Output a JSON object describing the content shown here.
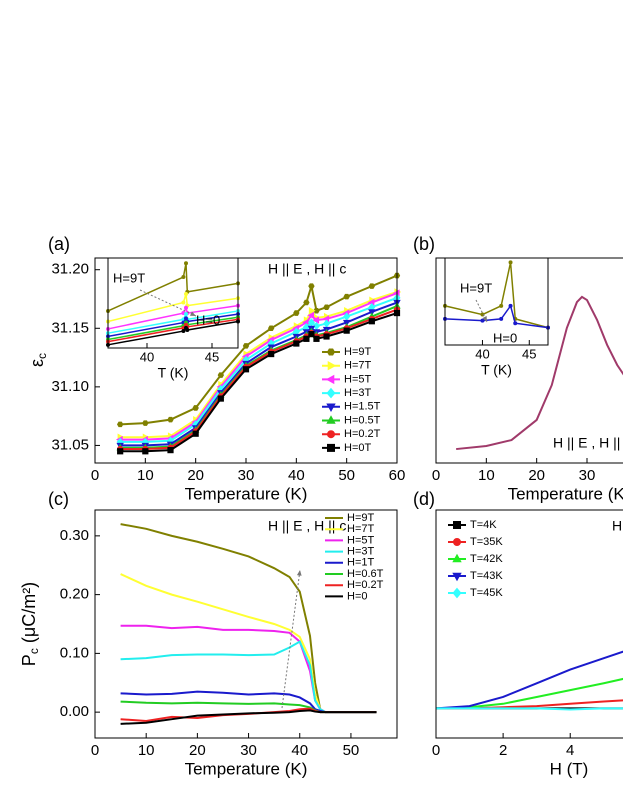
{
  "chart_data": [
    {
      "type": "line",
      "panel": "(a)",
      "xlabel": "Temperature (K)",
      "ylabel": {
        "main": "ε",
        "sub": "c"
      },
      "xlim": [
        0,
        60
      ],
      "ylim": [
        31.035,
        31.21
      ],
      "xticks": [
        0,
        10,
        20,
        30,
        40,
        50,
        60
      ],
      "yticks": [
        31.05,
        {
          "value": 31.1,
          "label": "31.10"
        },
        31.15,
        {
          "value": 31.2,
          "label": "31.20"
        }
      ],
      "annotations": [
        "H || E , H || c"
      ],
      "legend": true,
      "markers": true,
      "x": [
        5,
        10,
        15,
        20,
        25,
        30,
        35,
        40,
        42,
        43,
        44,
        46,
        50,
        55,
        60
      ],
      "series": [
        {
          "name": "H=9T",
          "color": "#808000",
          "marker": "hexagon",
          "values": [
            31.068,
            31.069,
            31.072,
            31.082,
            31.11,
            31.135,
            31.15,
            31.163,
            31.172,
            31.186,
            31.165,
            31.168,
            31.177,
            31.186,
            31.195
          ]
        },
        {
          "name": "H=7T",
          "color": "#ffff33",
          "marker": "triangle-right",
          "values": [
            31.057,
            31.057,
            31.058,
            31.072,
            31.102,
            31.128,
            31.142,
            31.152,
            31.157,
            31.165,
            31.159,
            31.16,
            31.165,
            31.174,
            31.181
          ]
        },
        {
          "name": "H=5T",
          "color": "#ff33ff",
          "marker": "triangle-left",
          "values": [
            31.055,
            31.055,
            31.056,
            31.07,
            31.1,
            31.126,
            31.14,
            31.15,
            31.155,
            31.161,
            31.157,
            31.158,
            31.163,
            31.172,
            31.18
          ]
        },
        {
          "name": "H=3T",
          "color": "#33ffff",
          "marker": "diamond",
          "values": [
            31.053,
            31.053,
            31.054,
            31.068,
            31.098,
            31.123,
            31.137,
            31.147,
            31.151,
            31.155,
            31.152,
            31.154,
            31.16,
            31.168,
            31.176
          ]
        },
        {
          "name": "H=1.5T",
          "color": "#1a1acc",
          "marker": "triangle-down",
          "values": [
            31.05,
            31.05,
            31.051,
            31.065,
            31.095,
            31.12,
            31.134,
            31.143,
            31.147,
            31.15,
            31.147,
            31.149,
            31.155,
            31.164,
            31.172
          ]
        },
        {
          "name": "H=0.5T",
          "color": "#22cc22",
          "marker": "triangle",
          "values": [
            31.048,
            31.048,
            31.049,
            31.063,
            31.093,
            31.118,
            31.131,
            31.14,
            31.144,
            31.147,
            31.144,
            31.146,
            31.151,
            31.16,
            31.169
          ]
        },
        {
          "name": "H=0.2T",
          "color": "#ee2222",
          "marker": "circle",
          "values": [
            31.047,
            31.047,
            31.048,
            31.062,
            31.092,
            31.117,
            31.13,
            31.139,
            31.143,
            31.146,
            31.143,
            31.145,
            31.15,
            31.158,
            31.166
          ]
        },
        {
          "name": "H=0T",
          "color": "#000000",
          "marker": "square",
          "values": [
            31.045,
            31.045,
            31.046,
            31.06,
            31.09,
            31.115,
            31.128,
            31.137,
            31.141,
            31.145,
            31.141,
            31.143,
            31.148,
            31.156,
            31.163
          ]
        }
      ]
    },
    {
      "type": "line",
      "inset": true,
      "xlabel": "T (K)",
      "xlim": [
        37,
        47
      ],
      "ylim": [
        31.125,
        31.21
      ],
      "xticks": [
        40,
        45
      ],
      "annotations": [
        "H=9T",
        "H=0"
      ],
      "annotation_color": "#888888",
      "markers": true,
      "x": [
        37,
        42.8,
        43,
        43.1,
        47
      ],
      "series": [
        {
          "color": "#808000",
          "values": [
            31.16,
            31.192,
            31.205,
            31.178,
            31.186
          ]
        },
        {
          "color": "#ffff33",
          "values": [
            31.15,
            31.168,
            31.176,
            31.165,
            31.172
          ]
        },
        {
          "color": "#ff33ff",
          "values": [
            31.143,
            31.158,
            31.163,
            31.158,
            31.165
          ]
        },
        {
          "color": "#33ffff",
          "values": [
            31.139,
            31.152,
            31.157,
            31.152,
            31.16
          ]
        },
        {
          "color": "#1a1acc",
          "values": [
            31.136,
            31.149,
            31.153,
            31.15,
            31.157
          ]
        },
        {
          "color": "#22cc22",
          "values": [
            31.133,
            31.146,
            31.149,
            31.147,
            31.154
          ]
        },
        {
          "color": "#ee2222",
          "values": [
            31.131,
            31.144,
            31.147,
            31.145,
            31.152
          ]
        },
        {
          "color": "#000000",
          "values": [
            31.128,
            31.141,
            31.144,
            31.142,
            31.15
          ]
        }
      ]
    },
    {
      "type": "line",
      "panel": "(b)",
      "xlabel": "Temperature (K)",
      "xlim": [
        0,
        60
      ],
      "ylim": [
        0,
        1
      ],
      "xticks": [
        0,
        10,
        20,
        30
      ],
      "annotations": [
        "H || E , H || c"
      ],
      "markers": false,
      "x": [
        4,
        10,
        15,
        20,
        23,
        26,
        28,
        29,
        30,
        32,
        34,
        36,
        38,
        40
      ],
      "series": [
        {
          "color": "#a03a6a",
          "values": [
            0.068,
            0.083,
            0.112,
            0.21,
            0.38,
            0.659,
            0.785,
            0.81,
            0.795,
            0.698,
            0.576,
            0.478,
            0.405,
            0.366
          ]
        }
      ]
    },
    {
      "type": "line",
      "inset": true,
      "xlabel": "T (K)",
      "xlim": [
        36,
        47
      ],
      "ylim": [
        0,
        1
      ],
      "xticks": [
        40,
        45
      ],
      "annotations": [
        "H=9T",
        "H=0"
      ],
      "annotation_color": "#888888",
      "markers": true,
      "x": [
        36,
        40,
        42,
        43,
        43.5,
        47
      ],
      "series": [
        {
          "color": "#808000",
          "values": [
            0.45,
            0.35,
            0.45,
            0.95,
            0.3,
            0.2
          ]
        },
        {
          "color": "#1a1acc",
          "values": [
            0.3,
            0.28,
            0.3,
            0.45,
            0.25,
            0.2
          ]
        }
      ]
    },
    {
      "type": "line",
      "panel": "(c)",
      "xlabel": "Temperature (K)",
      "ylabel": {
        "main": "P",
        "sub": "c",
        "rest": " (μC/m²)"
      },
      "xlim": [
        0,
        59
      ],
      "ylim": [
        -0.044,
        0.344
      ],
      "xticks": [
        0,
        10,
        20,
        30,
        40,
        50
      ],
      "yticks": [
        {
          "value": 0,
          "label": "0.00"
        },
        {
          "value": 0.1,
          "label": "0.10"
        },
        {
          "value": 0.2,
          "label": "0.20"
        },
        {
          "value": 0.3,
          "label": "0.30"
        }
      ],
      "annotations": [
        "H || E , H || c"
      ],
      "legend": true,
      "markers": false,
      "x": [
        5,
        10,
        15,
        20,
        25,
        30,
        35,
        38,
        40,
        42,
        43,
        44,
        45,
        50,
        55
      ],
      "series": [
        {
          "name": "H=9T",
          "color": "#808000",
          "values": [
            0.32,
            0.312,
            0.3,
            0.29,
            0.278,
            0.265,
            0.245,
            0.23,
            0.205,
            0.13,
            0.05,
            0.005,
            0,
            0,
            0
          ]
        },
        {
          "name": "H=7T",
          "color": "#ffff33",
          "values": [
            0.235,
            0.215,
            0.2,
            0.188,
            0.175,
            0.162,
            0.15,
            0.14,
            0.128,
            0.09,
            0.03,
            0.005,
            0,
            0,
            0
          ]
        },
        {
          "name": "H=5T",
          "color": "#ee22ee",
          "values": [
            0.147,
            0.147,
            0.143,
            0.145,
            0.14,
            0.14,
            0.138,
            0.135,
            0.12,
            0.07,
            0.02,
            0.005,
            0,
            0,
            0
          ]
        },
        {
          "name": "H=3T",
          "color": "#22eeee",
          "values": [
            0.09,
            0.092,
            0.097,
            0.098,
            0.098,
            0.097,
            0.098,
            0.11,
            0.12,
            0.08,
            0.02,
            0.005,
            0,
            0,
            0
          ]
        },
        {
          "name": "H=1T",
          "color": "#1a1acc",
          "values": [
            0.032,
            0.03,
            0.031,
            0.035,
            0.033,
            0.03,
            0.032,
            0.03,
            0.025,
            0.015,
            0.005,
            0.002,
            0,
            0,
            0
          ]
        },
        {
          "name": "H=0.6T",
          "color": "#22cc22",
          "values": [
            0.018,
            0.016,
            0.015,
            0.016,
            0.015,
            0.014,
            0.015,
            0.013,
            0.012,
            0.008,
            0.003,
            0,
            0,
            0,
            0
          ]
        },
        {
          "name": "H=0.2T",
          "color": "#ee2222",
          "values": [
            -0.012,
            -0.015,
            -0.008,
            -0.01,
            -0.005,
            -0.003,
            0,
            0.002,
            0.005,
            0.006,
            0.002,
            0,
            0,
            0,
            0
          ]
        },
        {
          "name": "H=0",
          "color": "#000000",
          "values": [
            -0.02,
            -0.018,
            -0.012,
            -0.006,
            -0.004,
            -0.002,
            -0.001,
            0,
            0.002,
            0.003,
            0.001,
            0,
            0,
            0,
            0
          ]
        }
      ]
    },
    {
      "type": "line",
      "panel": "(d)",
      "xlabel": "H (T)",
      "xlim": [
        0,
        9
      ],
      "ylim": [
        0,
        1
      ],
      "xticks": [
        0,
        2,
        4
      ],
      "annotations": [
        "H || E , H || c"
      ],
      "legend": true,
      "markers": false,
      "x": [
        0,
        1,
        2,
        3,
        4,
        5,
        5.6
      ],
      "series": [
        {
          "name": "T=4K",
          "color": "#000000",
          "marker": "square",
          "values": [
            0.13,
            0.13,
            0.13,
            0.13,
            0.13,
            0.13,
            0.13
          ]
        },
        {
          "name": "T=35K",
          "color": "#ee2222",
          "marker": "circle",
          "values": [
            0.13,
            0.13,
            0.135,
            0.14,
            0.15,
            0.16,
            0.165
          ]
        },
        {
          "name": "T=42K",
          "color": "#22ee22",
          "marker": "triangle",
          "values": [
            0.13,
            0.135,
            0.15,
            0.18,
            0.21,
            0.24,
            0.26
          ]
        },
        {
          "name": "T=43K",
          "color": "#1a1acc",
          "marker": "triangle-down",
          "values": [
            0.13,
            0.14,
            0.18,
            0.24,
            0.3,
            0.35,
            0.38
          ]
        },
        {
          "name": "T=45K",
          "color": "#33ffff",
          "marker": "diamond",
          "values": [
            0.13,
            0.13,
            0.13,
            0.13,
            0.125,
            0.13,
            0.13
          ]
        }
      ]
    }
  ]
}
